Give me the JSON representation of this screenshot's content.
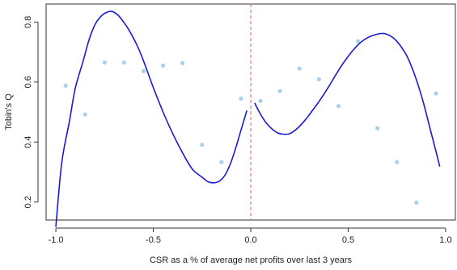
{
  "chart_data": {
    "type": "scatter",
    "xlabel": "CSR as a % of average net profits over last 3 years",
    "ylabel": "Tobin's Q",
    "xlim": [
      -1.05,
      1.05
    ],
    "ylim": [
      0.14,
      0.86
    ],
    "x_ticks": [
      -1.0,
      -0.5,
      0.0,
      0.5,
      1.0
    ],
    "x_tick_labels": [
      "-1.0",
      "-0.5",
      "0.0",
      "0.5",
      "1.0"
    ],
    "y_ticks": [
      0.2,
      0.4,
      0.6,
      0.8
    ],
    "y_tick_labels": [
      "0.2",
      "0.4",
      "0.6",
      "0.8"
    ],
    "grid": false,
    "cutoff_x": 0.0,
    "colors": {
      "points": "#a9d2ec",
      "fit": "#1a1ad6",
      "cutoff": "#f08080",
      "axis": "#333333"
    },
    "points": [
      {
        "x": -0.95,
        "y": 0.588
      },
      {
        "x": -0.85,
        "y": 0.492
      },
      {
        "x": -0.75,
        "y": 0.665
      },
      {
        "x": -0.65,
        "y": 0.665
      },
      {
        "x": -0.55,
        "y": 0.636
      },
      {
        "x": -0.45,
        "y": 0.655
      },
      {
        "x": -0.35,
        "y": 0.663
      },
      {
        "x": -0.25,
        "y": 0.391
      },
      {
        "x": -0.15,
        "y": 0.333
      },
      {
        "x": -0.05,
        "y": 0.545
      },
      {
        "x": 0.05,
        "y": 0.537
      },
      {
        "x": 0.15,
        "y": 0.57
      },
      {
        "x": 0.25,
        "y": 0.645
      },
      {
        "x": 0.35,
        "y": 0.609
      },
      {
        "x": 0.45,
        "y": 0.52
      },
      {
        "x": 0.55,
        "y": 0.736
      },
      {
        "x": 0.65,
        "y": 0.446
      },
      {
        "x": 0.75,
        "y": 0.333
      },
      {
        "x": 0.85,
        "y": 0.198
      },
      {
        "x": 0.95,
        "y": 0.562
      }
    ],
    "series": [
      {
        "segment": "left",
        "x": [
          -1.0,
          -0.97,
          -0.93,
          -0.9,
          -0.86,
          -0.83,
          -0.8,
          -0.77,
          -0.74,
          -0.71,
          -0.68,
          -0.65,
          -0.62,
          -0.58,
          -0.55,
          -0.5,
          -0.45,
          -0.4,
          -0.35,
          -0.3,
          -0.25,
          -0.22,
          -0.19,
          -0.16,
          -0.13,
          -0.1,
          -0.07,
          -0.05,
          -0.02
        ],
        "y": [
          0.117,
          0.33,
          0.47,
          0.58,
          0.67,
          0.74,
          0.79,
          0.818,
          0.832,
          0.835,
          0.822,
          0.798,
          0.768,
          0.718,
          0.67,
          0.582,
          0.5,
          0.428,
          0.364,
          0.31,
          0.283,
          0.268,
          0.264,
          0.27,
          0.292,
          0.335,
          0.395,
          0.44,
          0.505
        ]
      },
      {
        "segment": "right",
        "x": [
          0.02,
          0.05,
          0.08,
          0.11,
          0.14,
          0.17,
          0.2,
          0.24,
          0.28,
          0.32,
          0.36,
          0.4,
          0.44,
          0.48,
          0.52,
          0.56,
          0.6,
          0.64,
          0.67,
          0.7,
          0.73,
          0.76,
          0.8,
          0.84,
          0.88,
          0.92,
          0.95,
          0.97
        ],
        "y": [
          0.53,
          0.493,
          0.463,
          0.443,
          0.43,
          0.426,
          0.428,
          0.446,
          0.474,
          0.508,
          0.544,
          0.585,
          0.628,
          0.668,
          0.702,
          0.73,
          0.748,
          0.758,
          0.762,
          0.759,
          0.748,
          0.728,
          0.688,
          0.626,
          0.545,
          0.445,
          0.37,
          0.318
        ]
      }
    ]
  }
}
